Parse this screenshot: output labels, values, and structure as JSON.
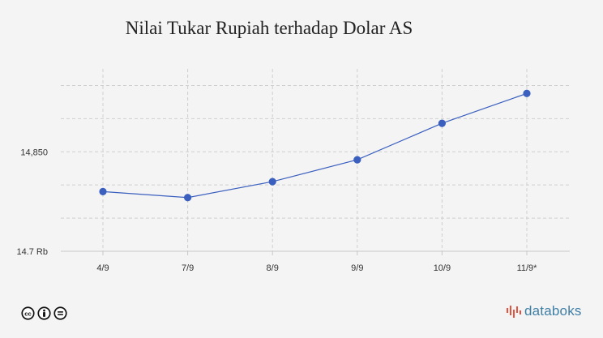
{
  "chart_data": {
    "type": "line",
    "title": "Nilai Tukar Rupiah terhadap Dolar AS",
    "xlabel": "",
    "ylabel": "",
    "categories": [
      "4/9",
      "7/9",
      "8/9",
      "9/9",
      "10/9",
      "11/9*"
    ],
    "series": [
      {
        "values": [
          14790,
          14781,
          14805,
          14838,
          14893,
          14938
        ]
      }
    ],
    "ylim": [
      14700,
      14975
    ],
    "yticks": [
      {
        "value": 14700,
        "label": "14.7 Rb"
      },
      {
        "value": 14750,
        "label": ""
      },
      {
        "value": 14800,
        "label": ""
      },
      {
        "value": 14850,
        "label": "14,850"
      },
      {
        "value": 14900,
        "label": ""
      },
      {
        "value": 14950,
        "label": ""
      }
    ],
    "grid": true,
    "legend": "none",
    "colors": {
      "line": "#3a5fbf",
      "marker": "#3a5fbf",
      "grid": "#cfcfcf",
      "axis": "#c8c8c8"
    }
  },
  "footer": {
    "license_icons": [
      "cc-icon",
      "by-icon",
      "nd-icon"
    ],
    "brand": "databoks",
    "brand_color": "#3f7fa6",
    "brand_logo": "bar-chart-logo-icon"
  }
}
